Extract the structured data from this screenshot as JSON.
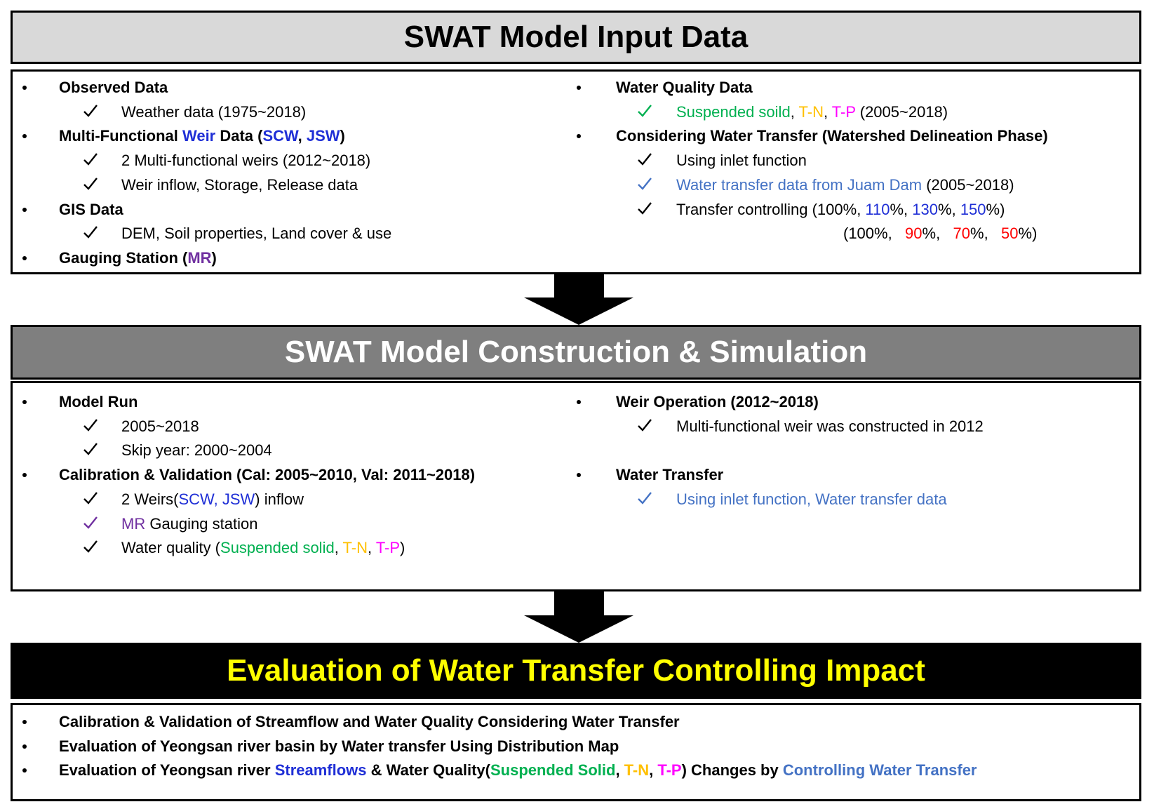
{
  "sections": [
    {
      "title": "SWAT Model Input Data",
      "left": [
        {
          "runs": [
            "Observed Data"
          ],
          "subs": [
            {
              "runs": [
                "Weather data (1975~2018)"
              ]
            }
          ]
        },
        {
          "runs": [
            "Multi-Functional ",
            {
              "text": "Weir",
              "color": "#1f2fd6"
            },
            " Data (",
            {
              "text": "SCW",
              "color": "#1f2fd6"
            },
            ", ",
            {
              "text": "JSW",
              "color": "#1f2fd6"
            },
            ")"
          ],
          "subs": [
            {
              "runs": [
                "2 Multi-functional weirs (2012~2018)"
              ]
            },
            {
              "runs": [
                "Weir inflow, Storage, Release data"
              ]
            }
          ]
        },
        {
          "runs": [
            "GIS Data"
          ],
          "subs": [
            {
              "runs": [
                "DEM, Soil properties, Land cover & use"
              ]
            }
          ]
        },
        {
          "runs": [
            "Gauging Station (",
            {
              "text": "MR",
              "color": "#7030a0"
            },
            ")"
          ],
          "subs": []
        }
      ],
      "right": [
        {
          "runs": [
            "Water Quality Data"
          ],
          "subs": [
            {
              "check_color": "#00b050",
              "runs": [
                {
                  "text": "Suspended soild",
                  "color": "#00b050"
                },
                ", ",
                {
                  "text": "T-N",
                  "color": "#ffc000"
                },
                ", ",
                {
                  "text": "T-P",
                  "color": "#ff00ff"
                },
                " (2005~2018)"
              ]
            }
          ]
        },
        {
          "runs": [
            "Considering Water Transfer (Watershed Delineation Phase)"
          ],
          "subs": [
            {
              "runs": [
                "Using inlet function"
              ]
            },
            {
              "check_color": "#4472c4",
              "runs": [
                {
                  "text": "Water transfer data from Juam Dam",
                  "color": "#4472c4"
                },
                " (2005~2018)"
              ]
            },
            {
              "runs": [
                "Transfer controlling (100%, ",
                {
                  "text": "110",
                  "color": "#1f2fd6"
                },
                "%, ",
                {
                  "text": "130",
                  "color": "#1f2fd6"
                },
                "%, ",
                {
                  "text": "150",
                  "color": "#1f2fd6"
                },
                "%)"
              ],
              "cont": [
                "(100%,   ",
                {
                  "text": "90",
                  "color": "#ff0000"
                },
                "%,   ",
                {
                  "text": "70",
                  "color": "#ff0000"
                },
                "%,   ",
                {
                  "text": "50",
                  "color": "#ff0000"
                },
                "%)"
              ]
            }
          ]
        }
      ]
    },
    {
      "title": "SWAT Model Construction & Simulation",
      "left": [
        {
          "runs": [
            "Model Run"
          ],
          "subs": [
            {
              "runs": [
                "2005~2018"
              ]
            },
            {
              "runs": [
                "Skip year: 2000~2004"
              ]
            }
          ]
        },
        {
          "runs": [
            "Calibration & Validation (Cal: 2005~2010, Val: 2011~2018)"
          ],
          "subs": [
            {
              "runs": [
                "2 Weirs(",
                {
                  "text": "SCW, JSW",
                  "color": "#1f2fd6"
                },
                ") inflow"
              ]
            },
            {
              "check_color": "#7030a0",
              "runs": [
                {
                  "text": "MR",
                  "color": "#7030a0"
                },
                " Gauging station"
              ]
            },
            {
              "runs": [
                "Water quality (",
                {
                  "text": "Suspended solid",
                  "color": "#00b050"
                },
                ", ",
                {
                  "text": "T-N",
                  "color": "#ffc000"
                },
                ", ",
                {
                  "text": "T-P",
                  "color": "#ff00ff"
                },
                ")"
              ]
            }
          ]
        }
      ],
      "right": [
        {
          "runs": [
            "Weir Operation (2012~2018)"
          ],
          "subs": [
            {
              "runs": [
                "Multi-functional weir was constructed in 2012"
              ]
            }
          ]
        },
        {
          "runs": [
            "Water Transfer"
          ],
          "subs": [
            {
              "check_color": "#4472c4",
              "runs": [
                {
                  "text": "Using inlet function, Water transfer data",
                  "color": "#4472c4"
                }
              ]
            }
          ]
        }
      ]
    },
    {
      "title": "Evaluation of Water Transfer Controlling Impact",
      "left": [
        {
          "runs": [
            "Calibration & Validation of Streamflow and Water Quality Considering Water Transfer"
          ],
          "subs": []
        },
        {
          "runs": [
            "Evaluation of Yeongsan river basin by Water transfer Using Distribution Map"
          ],
          "subs": []
        },
        {
          "runs": [
            "Evaluation of Yeongsan river ",
            {
              "text": "Streamflows",
              "color": "#1f2fd6"
            },
            " & Water Quality(",
            {
              "text": "Suspended Solid",
              "color": "#00b050"
            },
            ", ",
            {
              "text": "T-N",
              "color": "#ffc000"
            },
            ", ",
            {
              "text": "T-P",
              "color": "#ff00ff"
            },
            ") Changes by ",
            {
              "text": "Controlling Water Transfer",
              "color": "#4472c4"
            }
          ],
          "subs": []
        }
      ]
    }
  ]
}
